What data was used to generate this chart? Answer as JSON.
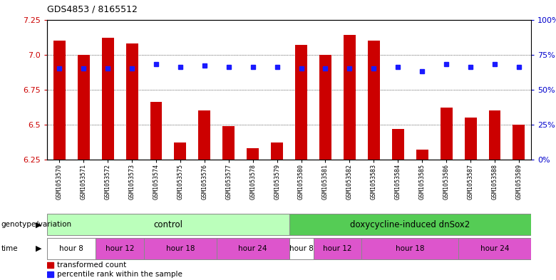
{
  "title": "GDS4853 / 8165512",
  "samples": [
    "GSM1053570",
    "GSM1053571",
    "GSM1053572",
    "GSM1053573",
    "GSM1053574",
    "GSM1053575",
    "GSM1053576",
    "GSM1053577",
    "GSM1053578",
    "GSM1053579",
    "GSM1053580",
    "GSM1053581",
    "GSM1053582",
    "GSM1053583",
    "GSM1053584",
    "GSM1053585",
    "GSM1053586",
    "GSM1053587",
    "GSM1053588",
    "GSM1053589"
  ],
  "transformed_count": [
    7.1,
    7.0,
    7.12,
    7.08,
    6.66,
    6.37,
    6.6,
    6.49,
    6.33,
    6.37,
    7.07,
    7.0,
    7.14,
    7.1,
    6.47,
    6.32,
    6.62,
    6.55,
    6.6,
    6.5
  ],
  "percentile_rank": [
    65,
    65,
    65,
    65,
    68,
    66,
    67,
    66,
    66,
    66,
    65,
    65,
    65,
    65,
    66,
    63,
    68,
    66,
    68,
    66
  ],
  "ylim_left": [
    6.25,
    7.25
  ],
  "ylim_right": [
    0,
    100
  ],
  "yticks_left": [
    6.25,
    6.5,
    6.75,
    7.0,
    7.25
  ],
  "yticks_right": [
    0,
    25,
    50,
    75,
    100
  ],
  "bar_color": "#cc0000",
  "dot_color": "#1a1aff",
  "background_color": "#ffffff",
  "genotype_control_label": "control",
  "genotype_dox_label": "doxycycline-induced dnSox2",
  "genotype_bg_control": "#bbffbb",
  "genotype_bg_dox": "#55cc55",
  "time_bg_white": "#ffffff",
  "time_bg_pink": "#dd55cc",
  "legend_tc": "transformed count",
  "legend_pr": "percentile rank within the sample",
  "xlabel_genotype": "genotype/variation",
  "xlabel_time": "time",
  "time_segs_ctrl": [
    [
      0,
      2,
      "hour 8",
      "white"
    ],
    [
      2,
      4,
      "hour 12",
      "pink"
    ],
    [
      4,
      7,
      "hour 18",
      "pink"
    ],
    [
      7,
      10,
      "hour 24",
      "pink"
    ]
  ],
  "time_segs_dox": [
    [
      10,
      11,
      "hour 8",
      "white"
    ],
    [
      11,
      13,
      "hour 12",
      "pink"
    ],
    [
      13,
      17,
      "hour 18",
      "pink"
    ],
    [
      17,
      20,
      "hour 24",
      "pink"
    ]
  ]
}
